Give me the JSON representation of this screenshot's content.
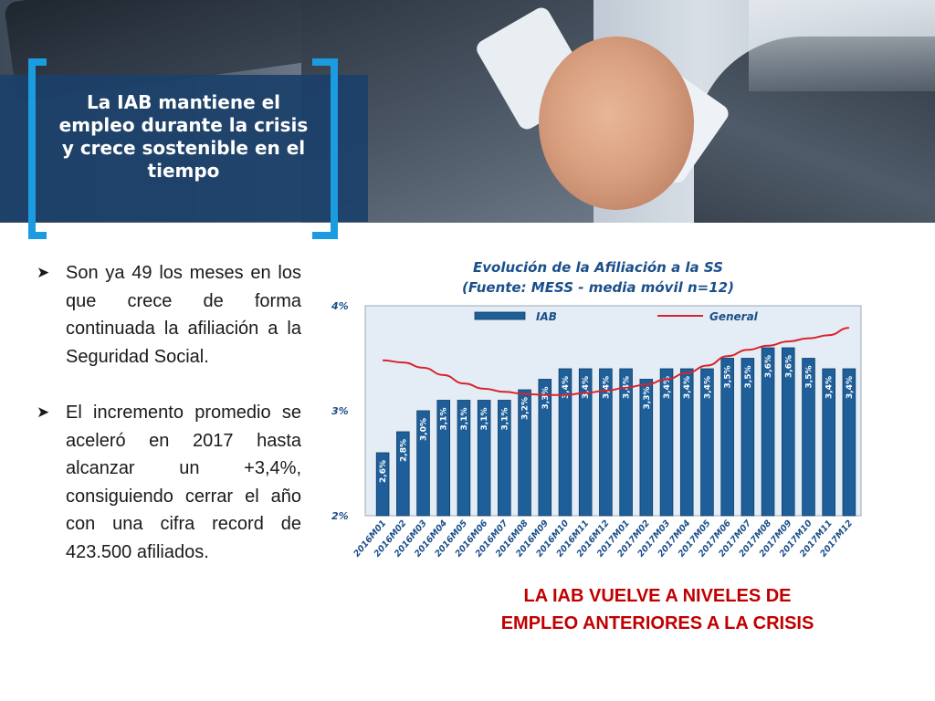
{
  "slide": {
    "title": "La IAB mantiene el empleo durante la crisis y crece sostenible en el tiempo",
    "bullets": [
      "Son ya 49 los meses en los que crece de forma continuada la afiliación a la Seguridad Social.",
      "El incremento promedio se aceleró en 2017 hasta alcanzar un +3,4%, consiguiendo cerrar el año con una cifra record de 423.500 afiliados."
    ],
    "bullet_icon": "arrow-right-icon",
    "tagline_line1": "LA IAB VUELVE A NIVELES DE",
    "tagline_line2": "EMPLEO ANTERIORES A LA CRISIS",
    "accent_color": "#1b9be0",
    "title_box_color": "#1b406a",
    "tagline_color": "#c00000"
  },
  "chart_data": {
    "type": "bar",
    "title_line1": "Evolución de la Afiliación a la SS",
    "title_line2": "(Fuente: MESS - media móvil n=12)",
    "categories": [
      "2016M01",
      "2016M02",
      "2016M03",
      "2016M04",
      "2016M05",
      "2016M06",
      "2016M07",
      "2016M08",
      "2016M09",
      "2016M10",
      "2016M11",
      "2016M12",
      "2017M01",
      "2017M02",
      "2017M03",
      "2017M04",
      "2017M05",
      "2017M06",
      "2017M07",
      "2017M08",
      "2017M09",
      "2017M10",
      "2017M11",
      "2017M12"
    ],
    "series": [
      {
        "name": "IAB",
        "kind": "bar",
        "color": "#1f5f99",
        "values": [
          2.6,
          2.8,
          3.0,
          3.1,
          3.1,
          3.1,
          3.1,
          3.2,
          3.3,
          3.4,
          3.4,
          3.4,
          3.4,
          3.3,
          3.4,
          3.4,
          3.4,
          3.5,
          3.5,
          3.6,
          3.6,
          3.5,
          3.4,
          3.4
        ],
        "labels": [
          "2,6%",
          "2,8%",
          "3,0%",
          "3,1%",
          "3,1%",
          "3,1%",
          "3,1%",
          "3,2%",
          "3,3%",
          "3,4%",
          "3,4%",
          "3,4%",
          "3,4%",
          "3,3%",
          "3,4%",
          "3,4%",
          "3,4%",
          "3,5%",
          "3,5%",
          "3,6%",
          "3,6%",
          "3,5%",
          "3,4%",
          "3,4%"
        ]
      },
      {
        "name": "General",
        "kind": "line",
        "color": "#d9232a",
        "values": [
          3.48,
          3.46,
          3.41,
          3.34,
          3.26,
          3.21,
          3.18,
          3.16,
          3.15,
          3.15,
          3.17,
          3.19,
          3.22,
          3.25,
          3.3,
          3.36,
          3.43,
          3.52,
          3.58,
          3.62,
          3.66,
          3.69,
          3.72,
          3.79
        ]
      }
    ],
    "ylim": [
      2,
      4
    ],
    "yticks": [
      "2%",
      "3%",
      "4%"
    ],
    "grid": false,
    "legend": "top"
  }
}
